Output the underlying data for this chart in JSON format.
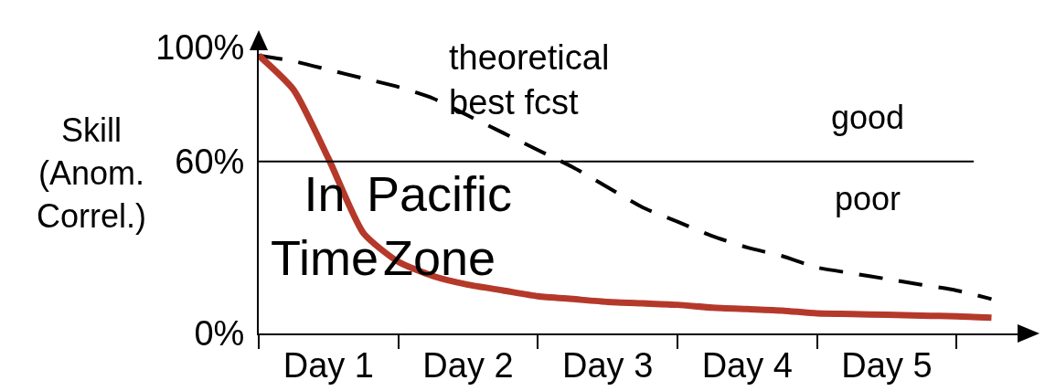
{
  "chart_data": {
    "type": "line",
    "ylabel": "Skill\n(Anom.\nCorrel.)",
    "categories": [
      null,
      null,
      "Day 1",
      null,
      null,
      null,
      "Day 2",
      null,
      null,
      null,
      "Day 3",
      null,
      null,
      null,
      "Day 4",
      null,
      null,
      null,
      "Day 5",
      null,
      null,
      null
    ],
    "ylim": [
      0,
      102
    ],
    "yticks": [
      {
        "value": 0,
        "label": "0%"
      },
      {
        "value": 60,
        "label": "60%"
      },
      {
        "value": 100,
        "label": "100%"
      }
    ],
    "grid": false,
    "series": [
      {
        "name": "theoretical\nbest fcst",
        "color": "#000000",
        "line_style": "dashed",
        "values": [
          97,
          95,
          92,
          89,
          86,
          82,
          76,
          70,
          64,
          58,
          51,
          44,
          39,
          34,
          30,
          27,
          23,
          21,
          19,
          17,
          15,
          12
        ]
      },
      {
        "color": "#b5392a",
        "line_style": "solid",
        "values": [
          97,
          85,
          61,
          35,
          25,
          20,
          17,
          15,
          13,
          12,
          11,
          10.5,
          10,
          9,
          8.5,
          8,
          7,
          6.8,
          6.5,
          6.2,
          6,
          5.5
        ]
      }
    ],
    "ref_lines": [
      {
        "axis": "y",
        "value": 60,
        "color": "#000000"
      }
    ],
    "annotations": [
      "good",
      "poor",
      "In\nTime",
      "Pacific\nZone"
    ]
  }
}
